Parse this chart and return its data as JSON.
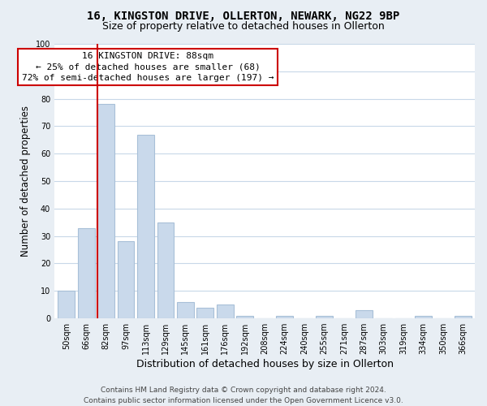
{
  "title": "16, KINGSTON DRIVE, OLLERTON, NEWARK, NG22 9BP",
  "subtitle": "Size of property relative to detached houses in Ollerton",
  "xlabel": "Distribution of detached houses by size in Ollerton",
  "ylabel": "Number of detached properties",
  "bar_labels": [
    "50sqm",
    "66sqm",
    "82sqm",
    "97sqm",
    "113sqm",
    "129sqm",
    "145sqm",
    "161sqm",
    "176sqm",
    "192sqm",
    "208sqm",
    "224sqm",
    "240sqm",
    "255sqm",
    "271sqm",
    "287sqm",
    "303sqm",
    "319sqm",
    "334sqm",
    "350sqm",
    "366sqm"
  ],
  "bar_values": [
    10,
    33,
    78,
    28,
    67,
    35,
    6,
    4,
    5,
    1,
    0,
    1,
    0,
    1,
    0,
    3,
    0,
    0,
    1,
    0,
    1
  ],
  "bar_color": "#c9d9eb",
  "bar_edge_color": "#a8c0d8",
  "vline_index": 2,
  "vline_color": "#cc0000",
  "ylim": [
    0,
    100
  ],
  "yticks": [
    0,
    10,
    20,
    30,
    40,
    50,
    60,
    70,
    80,
    90,
    100
  ],
  "annotation_title": "16 KINGSTON DRIVE: 88sqm",
  "annotation_line1": "← 25% of detached houses are smaller (68)",
  "annotation_line2": "72% of semi-detached houses are larger (197) →",
  "annotation_box_facecolor": "#ffffff",
  "annotation_box_edgecolor": "#cc0000",
  "footer_line1": "Contains HM Land Registry data © Crown copyright and database right 2024.",
  "footer_line2": "Contains public sector information licensed under the Open Government Licence v3.0.",
  "fig_facecolor": "#e8eef4",
  "plot_facecolor": "#ffffff",
  "grid_color": "#c8d8e8",
  "title_fontsize": 10,
  "subtitle_fontsize": 9,
  "tick_fontsize": 7,
  "ylabel_fontsize": 8.5,
  "xlabel_fontsize": 9,
  "annotation_fontsize": 8,
  "footer_fontsize": 6.5
}
